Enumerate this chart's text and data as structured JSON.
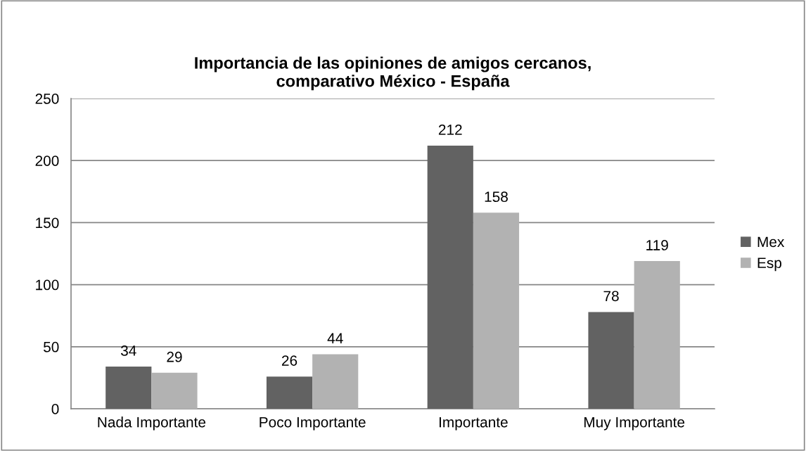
{
  "chart_data": {
    "type": "bar",
    "title": "Importancia de las opiniones de amigos cercanos,\ncomparativo México - España",
    "categories": [
      "Nada Importante",
      "Poco Importante",
      "Importante",
      "Muy Importante"
    ],
    "series": [
      {
        "name": "Mex",
        "color": "#626262",
        "values": [
          34,
          26,
          212,
          78
        ]
      },
      {
        "name": "Esp",
        "color": "#b2b2b2",
        "values": [
          29,
          44,
          158,
          119
        ]
      }
    ],
    "ylim": [
      0,
      250
    ],
    "yticks": [
      0,
      50,
      100,
      150,
      200,
      250
    ],
    "grid": "y",
    "legend": "right",
    "data_labels": true
  }
}
